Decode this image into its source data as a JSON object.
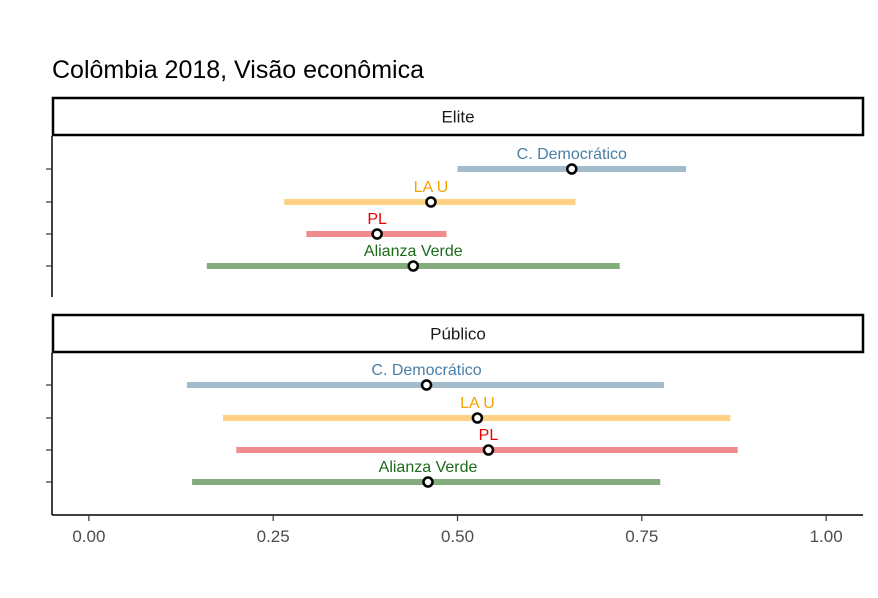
{
  "chart_data": {
    "type": "interval",
    "title": "Colômbia 2018, Visão econômica",
    "xlim": [
      -0.05,
      1.05
    ],
    "x_ticks": [
      0.0,
      0.25,
      0.5,
      0.75,
      1.0
    ],
    "x_tick_labels": [
      "0.00",
      "0.25",
      "0.50",
      "0.75",
      "1.00"
    ],
    "grid": false,
    "legend": "none",
    "colors": {
      "C. Democrático": {
        "bar": "#a3bccc",
        "label": "#4a7fa5"
      },
      "LA U": {
        "bar": "#fdd183",
        "label": "#f5a300"
      },
      "PL": {
        "bar": "#f28b8b",
        "label": "#ee0000"
      },
      "Alianza Verde": {
        "bar": "#82ac7b",
        "label": "#1b6b1b"
      }
    },
    "panels": [
      {
        "name": "Elite",
        "series": [
          {
            "name": "C. Democrático",
            "low": 0.5,
            "estimate": 0.655,
            "high": 0.81
          },
          {
            "name": "LA U",
            "low": 0.265,
            "estimate": 0.464,
            "high": 0.66
          },
          {
            "name": "PL",
            "low": 0.295,
            "estimate": 0.391,
            "high": 0.485
          },
          {
            "name": "Alianza Verde",
            "low": 0.16,
            "estimate": 0.44,
            "high": 0.72
          }
        ]
      },
      {
        "name": "Público",
        "series": [
          {
            "name": "C. Democrático",
            "low": 0.133,
            "estimate": 0.458,
            "high": 0.78
          },
          {
            "name": "LA U",
            "low": 0.182,
            "estimate": 0.527,
            "high": 0.87
          },
          {
            "name": "PL",
            "low": 0.2,
            "estimate": 0.542,
            "high": 0.88
          },
          {
            "name": "Alianza Verde",
            "low": 0.14,
            "estimate": 0.46,
            "high": 0.775
          }
        ]
      }
    ]
  }
}
